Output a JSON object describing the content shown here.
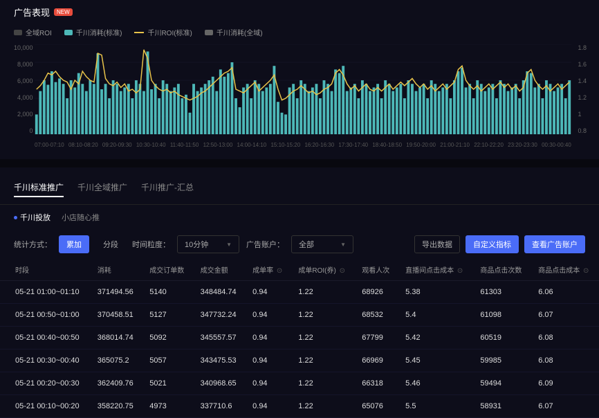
{
  "header": {
    "title": "广告表现",
    "badge": "NEW"
  },
  "legend": [
    {
      "label": "全域ROI",
      "type": "box",
      "color": "#444"
    },
    {
      "label": "千川消耗(标准)",
      "type": "box",
      "color": "#4db8b8"
    },
    {
      "label": "千川ROI(标准)",
      "type": "line",
      "color": "#e8c34a"
    },
    {
      "label": "千川消耗(全域)",
      "type": "box",
      "color": "#666"
    }
  ],
  "chart": {
    "yLeft": [
      "10,000",
      "8,000",
      "6,000",
      "4,000",
      "2,000",
      "0"
    ],
    "yRight": [
      "1.8",
      "1.6",
      "1.4",
      "1.2",
      "1",
      "0.8"
    ],
    "xLabels": [
      "07:00-07:10",
      "08:10-08:20",
      "09:20-09:30",
      "10:30-10:40",
      "11:40-11:50",
      "12:50-13:00",
      "14:00-14:10",
      "15:10-15:20",
      "16:20-16:30",
      "17:30-17:40",
      "18:40-18:50",
      "19:50-20:00",
      "21:00-21:10",
      "22:10-22:20",
      "23:20-23:30",
      "00:30-00:40"
    ],
    "barColor": "#4db8b8",
    "lineColor": "#e8c34a",
    "bars": [
      22,
      48,
      60,
      55,
      70,
      58,
      62,
      56,
      40,
      60,
      52,
      68,
      56,
      48,
      60,
      56,
      90,
      50,
      56,
      40,
      60,
      56,
      48,
      52,
      56,
      40,
      60,
      56,
      48,
      92,
      50,
      56,
      40,
      60,
      56,
      48,
      52,
      56,
      40,
      44,
      24,
      56,
      48,
      52,
      56,
      60,
      64,
      48,
      72,
      64,
      68,
      80,
      40,
      30,
      52,
      56,
      40,
      60,
      56,
      48,
      52,
      56,
      76,
      36,
      24,
      22,
      52,
      56,
      40,
      60,
      56,
      48,
      52,
      56,
      40,
      60,
      56,
      48,
      72,
      68,
      76,
      48,
      52,
      56,
      40,
      60,
      56,
      48,
      52,
      56,
      40,
      60,
      56,
      48,
      52,
      56,
      40,
      60,
      56,
      48,
      52,
      56,
      40,
      60,
      56,
      48,
      52,
      56,
      40,
      60,
      70,
      74,
      52,
      56,
      40,
      60,
      56,
      48,
      52,
      56,
      40,
      60,
      56,
      48,
      52,
      56,
      40,
      60,
      70,
      68,
      52,
      56,
      40,
      60,
      56,
      48,
      52,
      56,
      40,
      60
    ],
    "line": [
      50,
      54,
      60,
      68,
      66,
      70,
      64,
      60,
      58,
      50,
      60,
      56,
      70,
      64,
      60,
      58,
      90,
      88,
      62,
      56,
      54,
      58,
      52,
      56,
      48,
      50,
      46,
      50,
      94,
      84,
      60,
      54,
      50,
      48,
      50,
      46,
      48,
      44,
      42,
      40,
      38,
      40,
      42,
      46,
      48,
      52,
      56,
      60,
      64,
      68,
      70,
      74,
      50,
      48,
      46,
      50,
      54,
      58,
      48,
      52,
      56,
      60,
      66,
      50,
      38,
      40,
      44,
      48,
      50,
      54,
      50,
      46,
      48,
      44,
      46,
      50,
      52,
      56,
      68,
      72,
      66,
      56,
      50,
      54,
      48,
      52,
      56,
      50,
      48,
      52,
      48,
      52,
      56,
      50,
      54,
      58,
      54,
      58,
      62,
      56,
      52,
      56,
      50,
      54,
      48,
      52,
      56,
      50,
      54,
      58,
      72,
      76,
      60,
      54,
      50,
      54,
      48,
      52,
      56,
      50,
      54,
      58,
      52,
      56,
      50,
      54,
      48,
      52,
      68,
      72,
      60,
      54,
      50,
      54,
      48,
      52,
      56,
      50,
      54,
      58
    ]
  },
  "tabs": [
    {
      "label": "千川标准推广",
      "active": true
    },
    {
      "label": "千川全域推广"
    },
    {
      "label": "千川推广-汇总"
    }
  ],
  "subtabs": [
    {
      "label": "千川投放",
      "active": true
    },
    {
      "label": "小店随心推"
    }
  ],
  "controls": {
    "methodLabel": "统计方式：",
    "btnCum": "累加",
    "btnSplit": "分段",
    "granLabel": "时间粒度：",
    "granValue": "10分钟",
    "acctLabel": "广告账户：",
    "acctValue": "全部",
    "btnExport": "导出数据",
    "btnCustom": "自定义指标",
    "btnView": "查看广告账户"
  },
  "table": {
    "cols": [
      "时段",
      "消耗",
      "成交订单数",
      "成交金额",
      "成单率",
      "成单ROI(券)",
      "观看人次",
      "直播间点击成本",
      "商品点击次数",
      "商品点击成本"
    ],
    "rows": [
      [
        "05-21 01:00~01:10",
        "371494.56",
        "5140",
        "348484.74",
        "0.94",
        "1.22",
        "68926",
        "5.38",
        "61303",
        "6.06"
      ],
      [
        "05-21 00:50~01:00",
        "370458.51",
        "5127",
        "347732.24",
        "0.94",
        "1.22",
        "68532",
        "5.4",
        "61098",
        "6.07"
      ],
      [
        "05-21 00:40~00:50",
        "368014.74",
        "5092",
        "345557.57",
        "0.94",
        "1.22",
        "67799",
        "5.42",
        "60519",
        "6.08"
      ],
      [
        "05-21 00:30~00:40",
        "365075.2",
        "5057",
        "343475.53",
        "0.94",
        "1.22",
        "66969",
        "5.45",
        "59985",
        "6.08"
      ],
      [
        "05-21 00:20~00:30",
        "362409.76",
        "5021",
        "340968.65",
        "0.94",
        "1.22",
        "66318",
        "5.46",
        "59494",
        "6.09"
      ],
      [
        "05-21 00:10~00:20",
        "358220.75",
        "4973",
        "337710.6",
        "0.94",
        "1.22",
        "65076",
        "5.5",
        "58931",
        "6.07"
      ]
    ]
  }
}
